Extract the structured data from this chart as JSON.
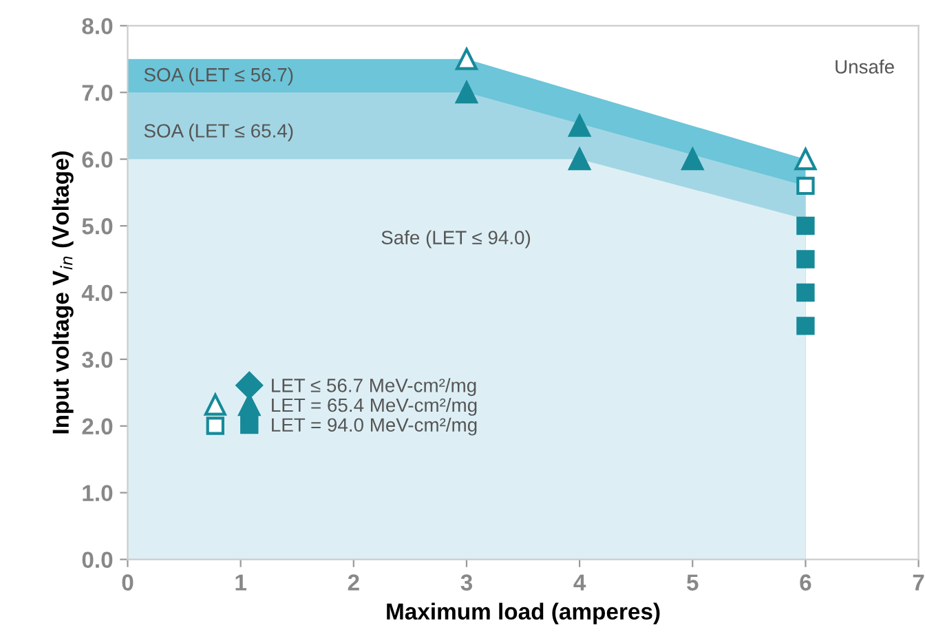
{
  "chart_data": {
    "type": "scatter",
    "xlabel": "Maximum load (amperes)",
    "ylabel": "Input voltage V$_{in}$ (Voltage)",
    "xlim": [
      0,
      7
    ],
    "xticks": [
      0,
      1,
      2,
      3,
      4,
      5,
      6,
      7
    ],
    "ylim": [
      0,
      8
    ],
    "yticks": [
      {
        "value": 0,
        "label": "0.0"
      },
      {
        "value": 1,
        "label": "1.0"
      },
      {
        "value": 2,
        "label": "2.0"
      },
      {
        "value": 3,
        "label": "3.0"
      },
      {
        "value": 4,
        "label": "4.0"
      },
      {
        "value": 5,
        "label": "5.0"
      },
      {
        "value": 6,
        "label": "6.0"
      },
      {
        "value": 7,
        "label": "7.0"
      },
      {
        "value": 8,
        "label": "8.0"
      }
    ],
    "grid": false,
    "legend": "bottom left",
    "series": [
      {
        "type": "area",
        "color": "#6cc5d9",
        "x": [
          0,
          3,
          6
        ],
        "values": [
          7.5,
          7.5,
          6.0
        ]
      },
      {
        "type": "area",
        "color": "#a3d6e4",
        "x": [
          0,
          3,
          6
        ],
        "values": [
          7.0,
          7.0,
          5.6
        ]
      },
      {
        "type": "area",
        "color": "#ddeff5",
        "x": [
          0,
          4,
          6
        ],
        "values": [
          6.0,
          6.0,
          5.1
        ]
      },
      {
        "name": "LET ≤ 56.7 MeV-cm²/mg",
        "marker": "diamond",
        "color": "#168a99"
      },
      {
        "name": "LET = 65.4 MeV-cm²/mg",
        "marker": "triangle",
        "color": "#168a99",
        "x": [
          3,
          4,
          4,
          5
        ],
        "values": [
          7.0,
          6.5,
          6.0,
          6.0
        ]
      },
      {
        "marker": "triangle",
        "color": "#ffffff",
        "x": [
          3,
          6
        ],
        "values": [
          7.5,
          6.0
        ]
      },
      {
        "name": "LET = 94.0 MeV-cm²/mg",
        "marker": "square",
        "color": "#168a99",
        "x": [
          6,
          6,
          6,
          6
        ],
        "values": [
          5.0,
          4.5,
          4.0,
          3.5
        ]
      },
      {
        "marker": "square",
        "color": "#ffffff",
        "x": [
          6
        ],
        "values": [
          5.6
        ]
      }
    ],
    "annotations": [
      "SOA (LET ≤ 56.7)",
      "SOA (LET ≤ 65.4)",
      "Safe (LET ≤ 94.0)",
      "Unsafe"
    ]
  }
}
